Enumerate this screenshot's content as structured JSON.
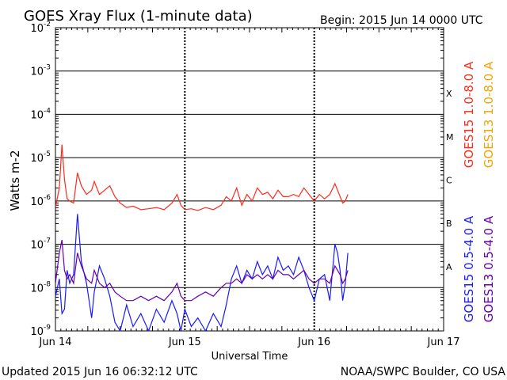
{
  "header": {
    "title": "GOES Xray Flux (1-minute data)",
    "begin_label": "Begin:  2015 Jun 14 0000 UTC"
  },
  "footer": {
    "updated": "Updated 2015 Jun 16 06:32:12 UTC",
    "credit": "NOAA/SWPC Boulder, CO USA"
  },
  "colors": {
    "goes15_long": "#ff2a1a",
    "goes13_long": "#f4a300",
    "goes15_short": "#1a1aff",
    "goes13_short": "#6600aa",
    "grid": "#000000"
  },
  "chart_data": {
    "type": "line",
    "title": "GOES Xray Flux (1-minute data)",
    "xlabel": "Universal Time",
    "ylabel": "Watts m-2",
    "yscale": "log",
    "ylim_exp": [
      -9,
      -2
    ],
    "y_tick_exponents": [
      -2,
      -3,
      -4,
      -5,
      -6,
      -7,
      -8,
      -9
    ],
    "xlim_days": [
      0,
      3
    ],
    "x_ticks": [
      {
        "day": 0,
        "label": "Jun 14"
      },
      {
        "day": 1,
        "label": "Jun 15"
      },
      {
        "day": 2,
        "label": "Jun 16"
      },
      {
        "day": 3,
        "label": "Jun 17"
      }
    ],
    "flare_classes": [
      {
        "label": "X",
        "exp": -4
      },
      {
        "label": "M",
        "exp": -5
      },
      {
        "label": "C",
        "exp": -6
      },
      {
        "label": "B",
        "exp": -7
      },
      {
        "label": "A",
        "exp": -8
      }
    ],
    "legend": [
      {
        "label": "GOES15 1.0-8.0 A",
        "color_key": "goes15_long"
      },
      {
        "label": "GOES13 1.0-8.0 A",
        "color_key": "goes13_long"
      },
      {
        "label": "GOES15 0.5-4.0 A",
        "color_key": "goes15_short"
      },
      {
        "label": "GOES13 0.5-4.0 A",
        "color_key": "goes13_short"
      }
    ],
    "series": [
      {
        "name": "GOES15 1.0-8.0 A",
        "color_key": "goes15_long",
        "day": [
          0.0,
          0.03,
          0.05,
          0.07,
          0.09,
          0.11,
          0.14,
          0.17,
          0.2,
          0.24,
          0.28,
          0.3,
          0.34,
          0.38,
          0.42,
          0.46,
          0.5,
          0.55,
          0.6,
          0.66,
          0.72,
          0.78,
          0.84,
          0.9,
          0.94,
          0.97,
          1.0,
          1.05,
          1.1,
          1.16,
          1.22,
          1.28,
          1.32,
          1.36,
          1.4,
          1.44,
          1.48,
          1.52,
          1.56,
          1.6,
          1.64,
          1.68,
          1.72,
          1.76,
          1.8,
          1.84,
          1.88,
          1.92,
          1.96,
          2.0,
          2.04,
          2.08,
          2.12,
          2.16,
          2.18,
          2.2,
          2.22,
          2.24,
          2.26
        ],
        "y_exp": [
          -6.15,
          -5.7,
          -4.7,
          -5.5,
          -5.95,
          -6.0,
          -6.05,
          -5.35,
          -5.65,
          -5.85,
          -5.75,
          -5.55,
          -5.85,
          -5.75,
          -5.65,
          -5.9,
          -6.05,
          -6.15,
          -6.12,
          -6.2,
          -6.18,
          -6.15,
          -6.2,
          -6.05,
          -5.85,
          -6.1,
          -6.2,
          -6.18,
          -6.22,
          -6.15,
          -6.2,
          -6.1,
          -5.9,
          -6.0,
          -5.7,
          -6.1,
          -5.85,
          -6.0,
          -5.7,
          -5.85,
          -5.8,
          -5.95,
          -5.75,
          -5.9,
          -5.9,
          -5.85,
          -5.9,
          -5.7,
          -5.85,
          -6.0,
          -5.85,
          -5.95,
          -5.85,
          -5.6,
          -5.75,
          -5.9,
          -6.05,
          -6.0,
          -5.85
        ]
      },
      {
        "name": "GOES15 0.5-4.0 A",
        "color_key": "goes15_short",
        "day": [
          0.0,
          0.03,
          0.05,
          0.07,
          0.09,
          0.11,
          0.14,
          0.17,
          0.2,
          0.24,
          0.28,
          0.3,
          0.34,
          0.38,
          0.42,
          0.46,
          0.5,
          0.55,
          0.6,
          0.66,
          0.72,
          0.78,
          0.84,
          0.9,
          0.94,
          0.97,
          1.0,
          1.05,
          1.1,
          1.16,
          1.22,
          1.28,
          1.32,
          1.36,
          1.4,
          1.44,
          1.48,
          1.52,
          1.56,
          1.6,
          1.64,
          1.68,
          1.72,
          1.76,
          1.8,
          1.84,
          1.88,
          1.92,
          1.96,
          2.0,
          2.04,
          2.08,
          2.12,
          2.16,
          2.18,
          2.2,
          2.22,
          2.24,
          2.26
        ],
        "y_exp": [
          -8.2,
          -7.8,
          -8.6,
          -8.5,
          -7.6,
          -7.9,
          -7.7,
          -6.3,
          -7.4,
          -7.9,
          -8.7,
          -8.1,
          -7.5,
          -7.8,
          -8.2,
          -8.8,
          -9.0,
          -8.4,
          -8.9,
          -8.6,
          -9.0,
          -8.5,
          -8.8,
          -8.3,
          -8.6,
          -9.0,
          -8.5,
          -8.9,
          -8.7,
          -9.0,
          -8.6,
          -8.9,
          -8.4,
          -7.8,
          -7.5,
          -7.9,
          -7.6,
          -7.8,
          -7.4,
          -7.7,
          -7.5,
          -7.8,
          -7.3,
          -7.6,
          -7.5,
          -7.7,
          -7.3,
          -7.6,
          -8.0,
          -8.3,
          -7.8,
          -7.7,
          -8.3,
          -7.0,
          -7.2,
          -7.6,
          -8.3,
          -7.9,
          -7.2
        ]
      },
      {
        "name": "GOES13 0.5-4.0 A",
        "color_key": "goes13_short",
        "day": [
          0.0,
          0.03,
          0.05,
          0.07,
          0.09,
          0.11,
          0.14,
          0.17,
          0.2,
          0.24,
          0.28,
          0.3,
          0.34,
          0.38,
          0.42,
          0.46,
          0.5,
          0.55,
          0.6,
          0.66,
          0.72,
          0.78,
          0.84,
          0.9,
          0.94,
          0.97,
          1.0,
          1.05,
          1.1,
          1.16,
          1.22,
          1.28,
          1.32,
          1.36,
          1.4,
          1.44,
          1.48,
          1.52,
          1.56,
          1.6,
          1.64,
          1.68,
          1.72,
          1.76,
          1.8,
          1.84,
          1.88,
          1.92,
          1.96,
          2.0,
          2.04,
          2.08,
          2.12,
          2.16,
          2.18,
          2.2,
          2.22,
          2.24,
          2.26
        ],
        "y_exp": [
          -7.9,
          -7.2,
          -6.9,
          -7.6,
          -7.8,
          -7.7,
          -7.9,
          -7.2,
          -7.5,
          -7.8,
          -7.9,
          -7.6,
          -7.9,
          -8.0,
          -7.9,
          -8.1,
          -8.2,
          -8.3,
          -8.3,
          -8.2,
          -8.3,
          -8.2,
          -8.3,
          -8.1,
          -7.9,
          -8.2,
          -8.3,
          -8.3,
          -8.2,
          -8.1,
          -8.2,
          -8.0,
          -7.9,
          -7.9,
          -7.8,
          -7.9,
          -7.7,
          -7.8,
          -7.7,
          -7.8,
          -7.7,
          -7.8,
          -7.6,
          -7.7,
          -7.7,
          -7.8,
          -7.7,
          -7.6,
          -7.8,
          -7.9,
          -7.8,
          -7.8,
          -7.9,
          -7.5,
          -7.6,
          -7.7,
          -7.9,
          -7.8,
          -7.6
        ]
      }
    ]
  }
}
